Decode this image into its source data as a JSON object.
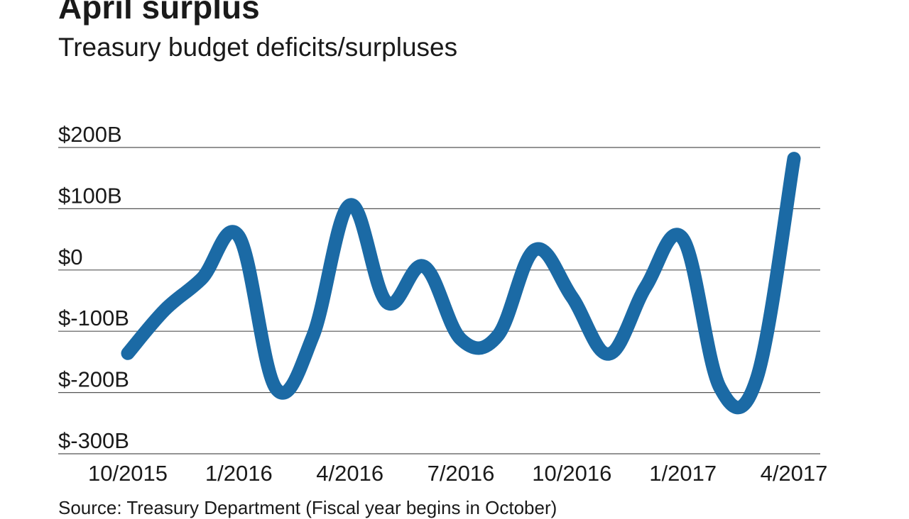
{
  "chart_data": {
    "type": "line",
    "title": "April surplus",
    "subtitle": "Treasury budget deficits/surpluses",
    "source": "Source: Treasury Department (Fiscal year begins in October)",
    "xlabel": "",
    "ylabel": "",
    "x_ticks": [
      "10/2015",
      "1/2016",
      "4/2016",
      "7/2016",
      "10/2016",
      "1/2017",
      "4/2017"
    ],
    "y_ticks": [
      {
        "value": 200,
        "label": "$200B"
      },
      {
        "value": 100,
        "label": "$100B"
      },
      {
        "value": 0,
        "label": "$0"
      },
      {
        "value": -100,
        "label": "$-100B"
      },
      {
        "value": -200,
        "label": "$-200B"
      },
      {
        "value": -300,
        "label": "$-300B"
      }
    ],
    "ylim": [
      -300,
      200
    ],
    "grid": "horizontal",
    "legend": "none",
    "line_color": "#1b6aa5",
    "grid_color": "#555555",
    "series": [
      {
        "x": [
          "10/2015",
          "11/2015",
          "12/2015",
          "1/2016",
          "2/2016",
          "3/2016",
          "4/2016",
          "5/2016",
          "6/2016",
          "7/2016",
          "8/2016",
          "9/2016",
          "10/2016",
          "11/2016",
          "12/2016",
          "1/2017",
          "2/2017",
          "3/2017",
          "4/2017"
        ],
        "values": [
          -136,
          -65,
          -14,
          55,
          -193,
          -108,
          106,
          -53,
          6,
          -113,
          -107,
          33,
          -44,
          -137,
          -27,
          51,
          -192,
          -176,
          182
        ]
      }
    ]
  }
}
